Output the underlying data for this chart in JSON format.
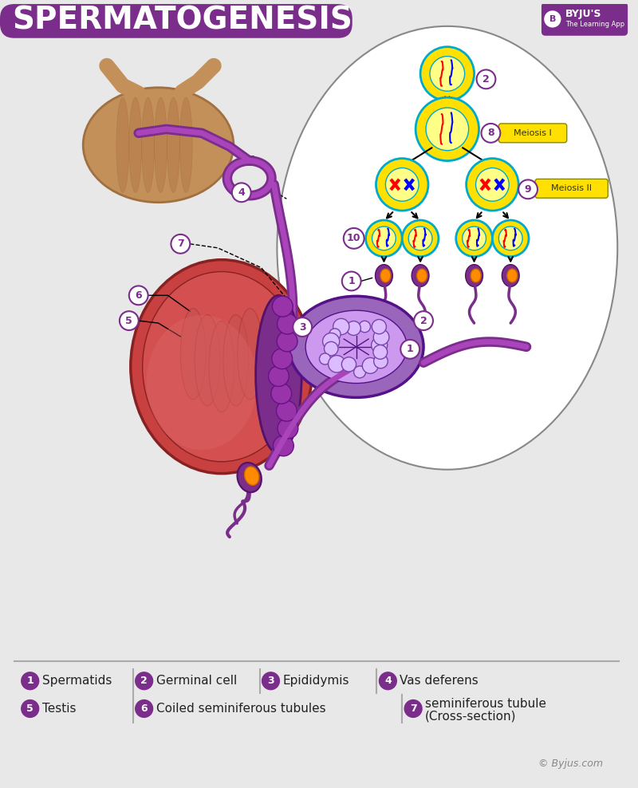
{
  "title": "SPERMATOGENESIS",
  "title_bg_color": "#7B2D8B",
  "title_text_color": "#FFFFFF",
  "bg_color": "#E8E8E8",
  "purple_color": "#7B2D8B",
  "light_purple": "#C9A0DC",
  "orange_color": "#F4A460",
  "yellow_color": "#FFE000",
  "pink_color": "#F4C2C2",
  "red_color": "#CC0000",
  "blue_color": "#4488CC",
  "teal_color": "#00AAAA",
  "copyright": "© Byjus.com",
  "meiosis_I_label": "Meiosis I",
  "meiosis_II_label": "Meiosis II"
}
